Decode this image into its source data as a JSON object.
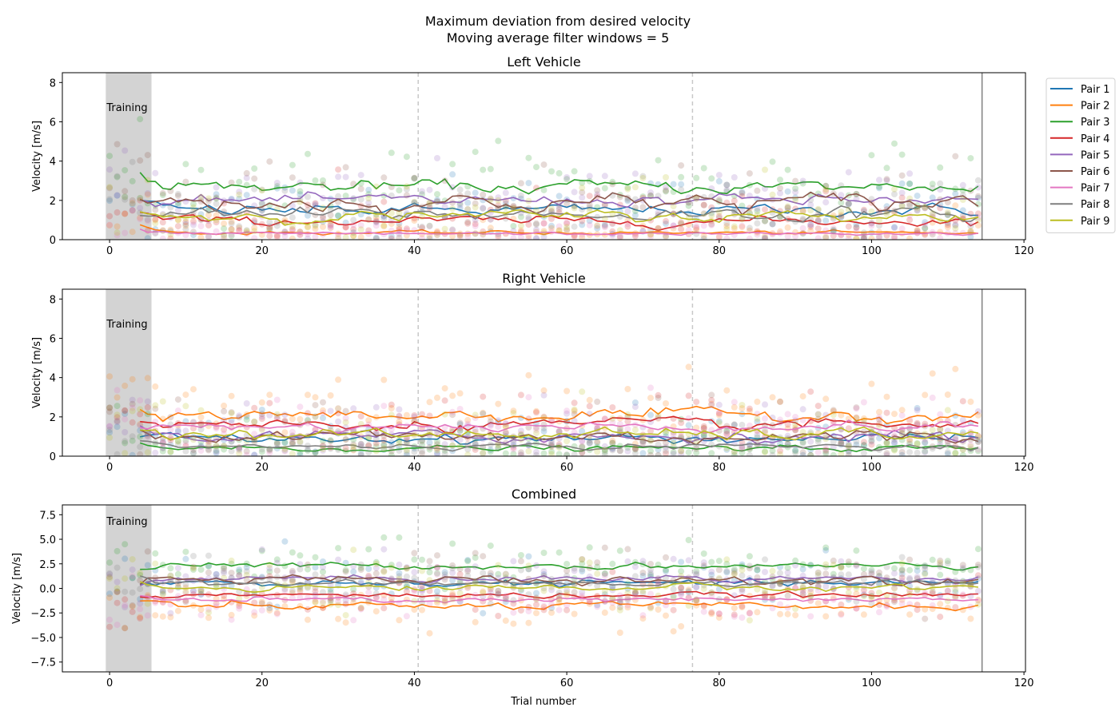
{
  "figure": {
    "title_line1": "Maximum deviation from desired velocity",
    "title_line2": "Moving average filter windows = 5",
    "xlabel": "Trial number"
  },
  "chart_data": [
    {
      "type": "line",
      "title": "Left Vehicle",
      "ylabel": "Velocity [m/s]",
      "xlim": [
        -6.2,
        120.2
      ],
      "ylim": [
        0,
        8.5
      ],
      "yticks": [
        0,
        2,
        4,
        6,
        8
      ],
      "training_region": [
        -0.5,
        5.5
      ],
      "training_label": "Training",
      "dashed_vlines": [
        40.5,
        76.5
      ],
      "solid_vline": 114.5,
      "series_levels": [
        1.5,
        0.35,
        2.7,
        0.95,
        2.0,
        1.9,
        0.3,
        1.3,
        1.2
      ],
      "series_noise": [
        0.3,
        0.1,
        0.35,
        0.25,
        0.3,
        0.5,
        0.08,
        0.35,
        0.3
      ],
      "scatter_spread": [
        0.9,
        0.6,
        1.0,
        0.8,
        0.9,
        1.1,
        0.4,
        0.9,
        0.9
      ]
    },
    {
      "type": "line",
      "title": "Right Vehicle",
      "ylabel": "Velocity [m/s]",
      "xlim": [
        -6.2,
        120.2
      ],
      "ylim": [
        0,
        8.5
      ],
      "yticks": [
        0,
        2,
        4,
        6,
        8
      ],
      "training_region": [
        -0.5,
        5.5
      ],
      "training_label": "Training",
      "dashed_vlines": [
        40.5,
        76.5
      ],
      "solid_vline": 114.5,
      "series_levels": [
        0.9,
        2.1,
        0.4,
        1.6,
        1.0,
        1.0,
        1.5,
        0.5,
        1.1
      ],
      "series_noise": [
        0.25,
        0.35,
        0.15,
        0.3,
        0.3,
        0.4,
        0.25,
        0.15,
        0.3
      ],
      "scatter_spread": [
        0.7,
        0.9,
        0.5,
        0.8,
        0.8,
        1.0,
        0.7,
        0.5,
        0.8
      ]
    },
    {
      "type": "line",
      "title": "Combined",
      "ylabel": "Velocity [m/s]",
      "xlim": [
        -6.2,
        120.2
      ],
      "ylim": [
        -8.5,
        8.5
      ],
      "yticks": [
        -7.5,
        -5.0,
        -2.5,
        0.0,
        2.5,
        5.0,
        7.5
      ],
      "training_region": [
        -0.5,
        5.5
      ],
      "training_label": "Training",
      "dashed_vlines": [
        40.5,
        76.5
      ],
      "solid_vline": 114.5,
      "series_levels": [
        0.5,
        -1.8,
        2.3,
        -0.7,
        1.0,
        0.9,
        -1.2,
        0.6,
        0.1
      ],
      "series_noise": [
        0.35,
        0.4,
        0.35,
        0.3,
        0.35,
        0.5,
        0.3,
        0.35,
        0.35
      ],
      "scatter_spread": [
        1.2,
        1.2,
        1.2,
        1.1,
        1.2,
        1.4,
        1.0,
        1.2,
        1.2
      ]
    }
  ],
  "x_range": [
    0,
    114
  ],
  "xticks": [
    0,
    20,
    40,
    60,
    80,
    100,
    120
  ],
  "legend": {
    "placement": "top-right outside",
    "entries": [
      "Pair 1",
      "Pair 2",
      "Pair 3",
      "Pair 4",
      "Pair 5",
      "Pair 6",
      "Pair 7",
      "Pair 8",
      "Pair 9"
    ]
  },
  "colors": [
    "#1f77b4",
    "#ff7f0e",
    "#2ca02c",
    "#d62728",
    "#9467bd",
    "#8c564b",
    "#e377c2",
    "#7f7f7f",
    "#bcbd22"
  ]
}
